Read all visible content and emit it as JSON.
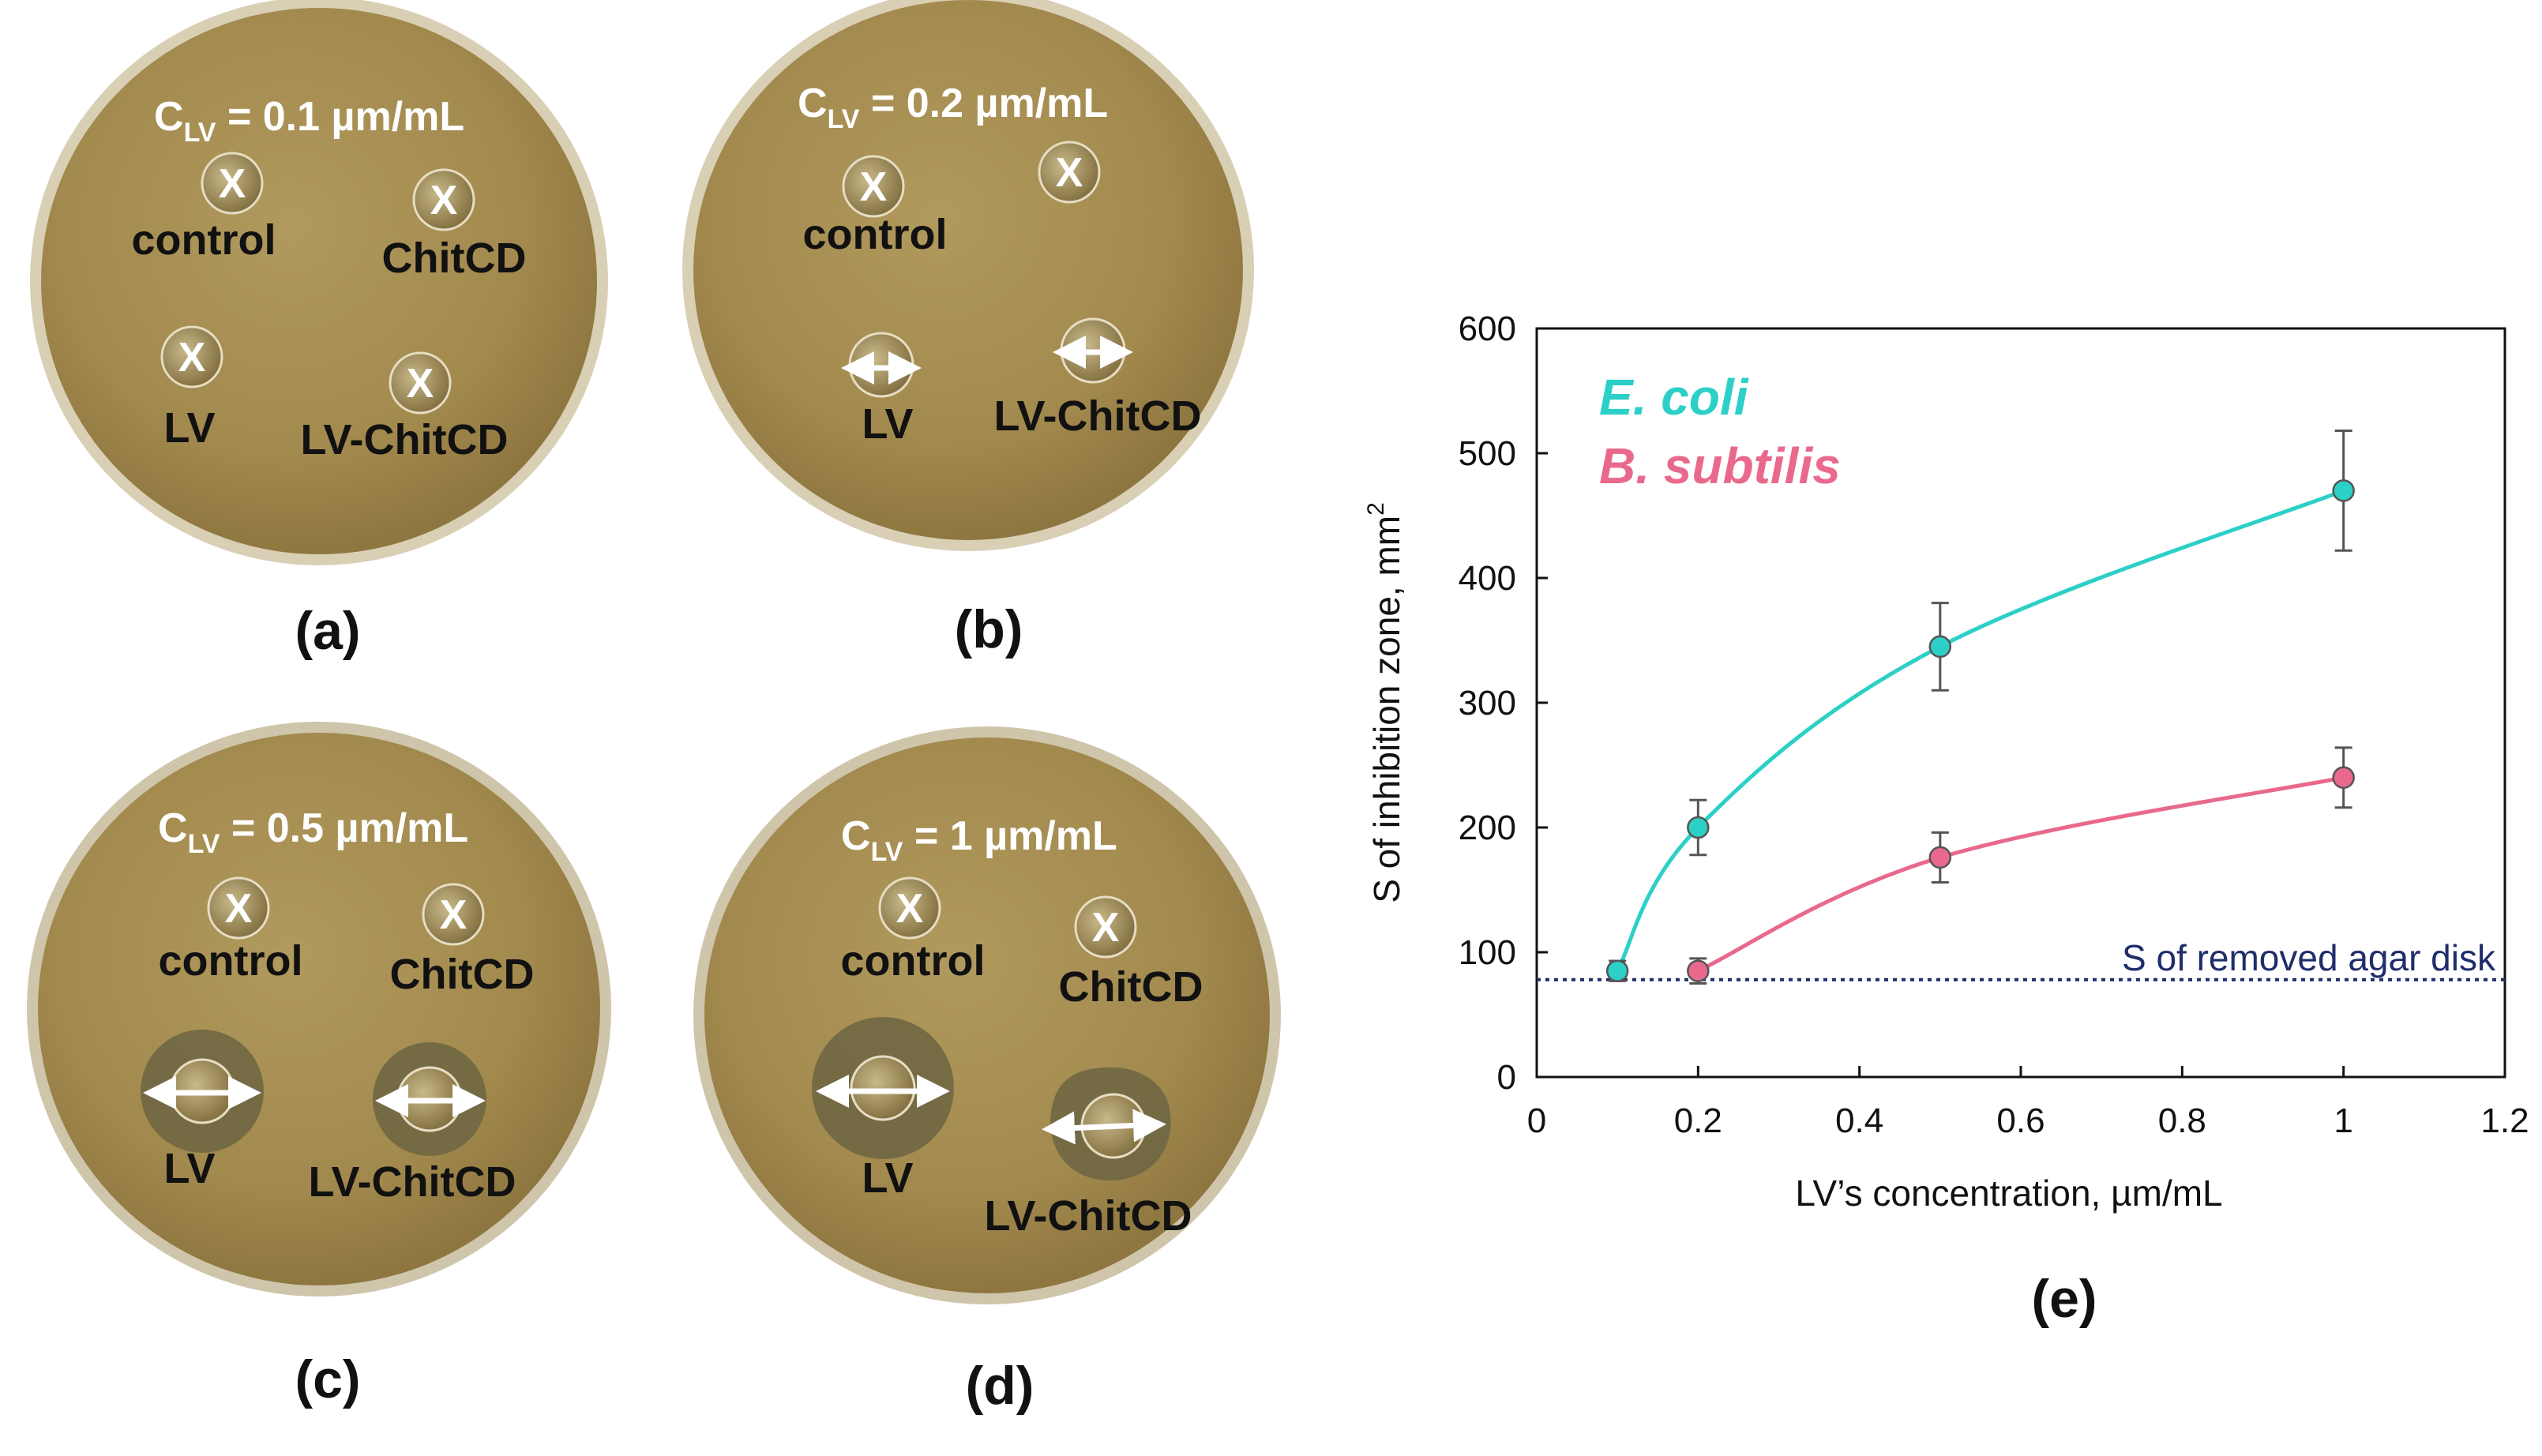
{
  "plates": [
    {
      "id": "a",
      "title_main": "C",
      "title_sub": "LV",
      "title_rest": " = 0.1 µm/mL",
      "label": "(a)",
      "wells": [
        {
          "label": "control",
          "mark": "x",
          "zone": 0
        },
        {
          "label": "ChitCD",
          "mark": "x",
          "zone": 0
        },
        {
          "label": "LV",
          "mark": "x",
          "zone": 0
        },
        {
          "label": "LV-ChitCD",
          "mark": "x",
          "zone": 0
        }
      ]
    },
    {
      "id": "b",
      "title_main": "C",
      "title_sub": "LV",
      "title_rest": " = 0.2 µm/mL",
      "label": "(b)",
      "wells": [
        {
          "label": "control",
          "mark": "x",
          "zone": 0
        },
        {
          "label": "",
          "mark": "x",
          "zone": 0
        },
        {
          "label": "LV",
          "mark": "arrow",
          "zone": 0.1
        },
        {
          "label": "LV-ChitCD",
          "mark": "arrow",
          "zone": 0.1
        }
      ]
    },
    {
      "id": "c",
      "title_main": "C",
      "title_sub": "LV",
      "title_rest": " = 0.5 µm/mL",
      "label": "(c)",
      "wells": [
        {
          "label": "control",
          "mark": "x",
          "zone": 0
        },
        {
          "label": "ChitCD",
          "mark": "x",
          "zone": 0
        },
        {
          "label": "LV",
          "mark": "arrow",
          "zone": 0.6
        },
        {
          "label": "LV-ChitCD",
          "mark": "arrow",
          "zone": 0.5
        }
      ]
    },
    {
      "id": "d",
      "title_main": "C",
      "title_sub": "LV",
      "title_rest": " = 1 µm/mL",
      "label": "(d)",
      "wells": [
        {
          "label": "control",
          "mark": "x",
          "zone": 0
        },
        {
          "label": "ChitCD",
          "mark": "x",
          "zone": 0
        },
        {
          "label": "LV",
          "mark": "arrow",
          "zone": 1.0
        },
        {
          "label": "LV-ChitCD",
          "mark": "arrow",
          "zone": 0.85
        }
      ]
    }
  ],
  "colors": {
    "agar": "#a38a4e",
    "agar_light": "#b49d61",
    "zone": "#6d6640",
    "ecoli": "#2cd0c7",
    "bsubtilis": "#e9698c",
    "reference": "#1f2d6b",
    "error": "#555555"
  },
  "chart_data": {
    "type": "line",
    "panel_label": "(e)",
    "xlabel": "LV’s concentration, µm/mL",
    "ylabel_main": "S of inhibition zone, mm",
    "ylabel_sup": "2",
    "xlim": [
      0,
      1.2
    ],
    "ylim": [
      0,
      600
    ],
    "x_ticks": [
      0,
      0.2,
      0.4,
      0.6,
      0.8,
      1,
      1.2
    ],
    "x_tick_labels": [
      "0",
      "0.2",
      "0.4",
      "0.6",
      "0.8",
      "1",
      "1.2"
    ],
    "y_ticks": [
      0,
      100,
      200,
      300,
      400,
      500,
      600
    ],
    "y_tick_labels": [
      "0",
      "100",
      "200",
      "300",
      "400",
      "500",
      "600"
    ],
    "series": [
      {
        "name": "E. coli",
        "color": "#2cd0c7",
        "x": [
          0.1,
          0.2,
          0.5,
          1
        ],
        "y": [
          85,
          200,
          345,
          470
        ],
        "err": [
          8,
          22,
          35,
          48
        ]
      },
      {
        "name": "B. subtilis",
        "color": "#e9698c",
        "x": [
          0.2,
          0.5,
          1
        ],
        "y": [
          85,
          176,
          240
        ],
        "err": [
          10,
          20,
          24
        ]
      }
    ],
    "reference_line": {
      "y": 78,
      "label": "S of removed agar disk"
    }
  }
}
